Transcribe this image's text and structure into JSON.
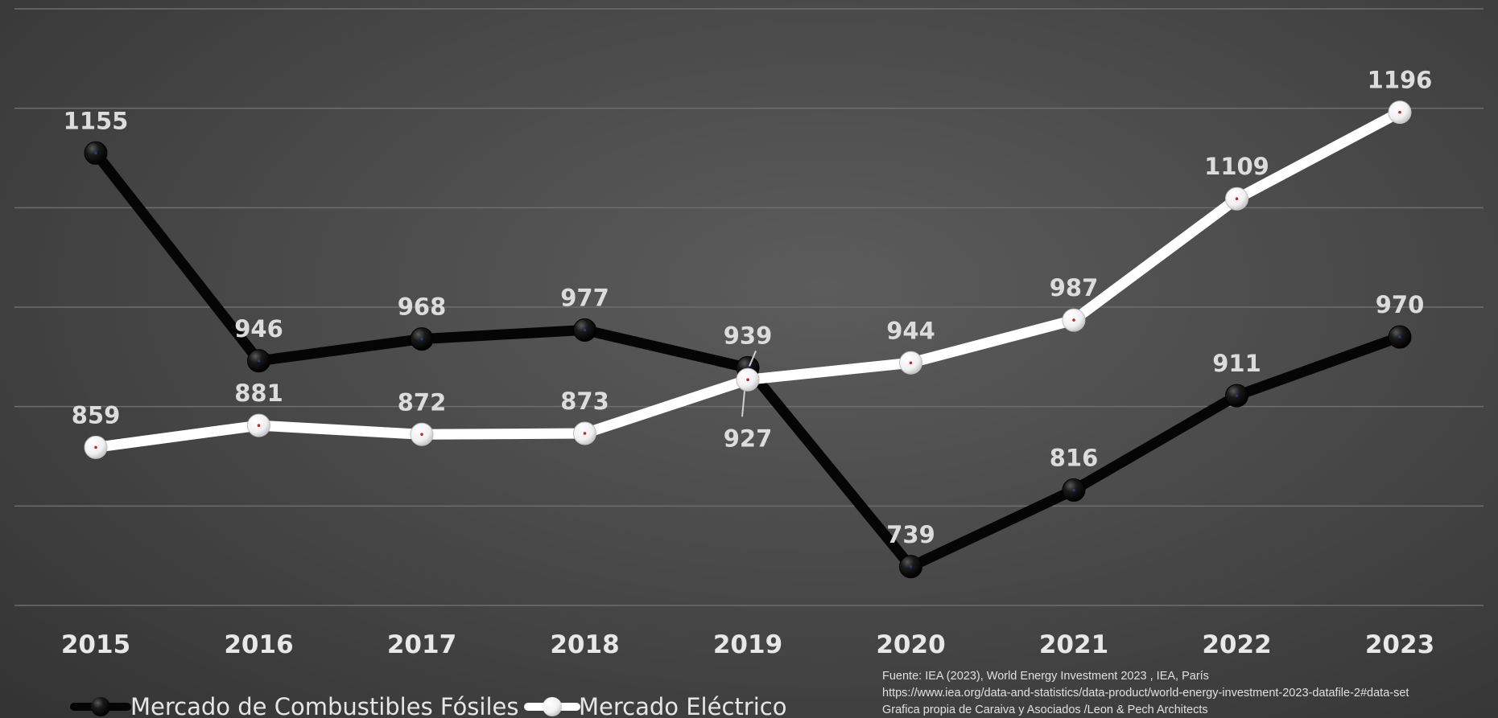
{
  "chart_data": {
    "type": "line",
    "categories": [
      "2015",
      "2016",
      "2017",
      "2018",
      "2019",
      "2020",
      "2021",
      "2022",
      "2023"
    ],
    "series": [
      {
        "name": "Mercado de Combustibles Fósiles",
        "color": "#050505",
        "values": [
          1155,
          946,
          968,
          977,
          939,
          739,
          816,
          911,
          970
        ]
      },
      {
        "name": "Mercado Eléctrico",
        "color": "#ffffff",
        "values": [
          859,
          881,
          872,
          873,
          927,
          944,
          987,
          1109,
          1196
        ]
      }
    ],
    "title": "",
    "xlabel": "",
    "ylabel": "",
    "ylim": [
      700,
      1300
    ],
    "grid": true,
    "legend_position": "bottom-left"
  },
  "source": {
    "line1": "Fuente: IEA (2023), World Energy Investment 2023 , IEA, París",
    "line2": "https://www.iea.org/data-and-statistics/data-product/world-energy-investment-2023-datafile-2#data-set",
    "line3": "Grafica propia de Caraiva y Asociados /Leon & Pech Architects"
  }
}
